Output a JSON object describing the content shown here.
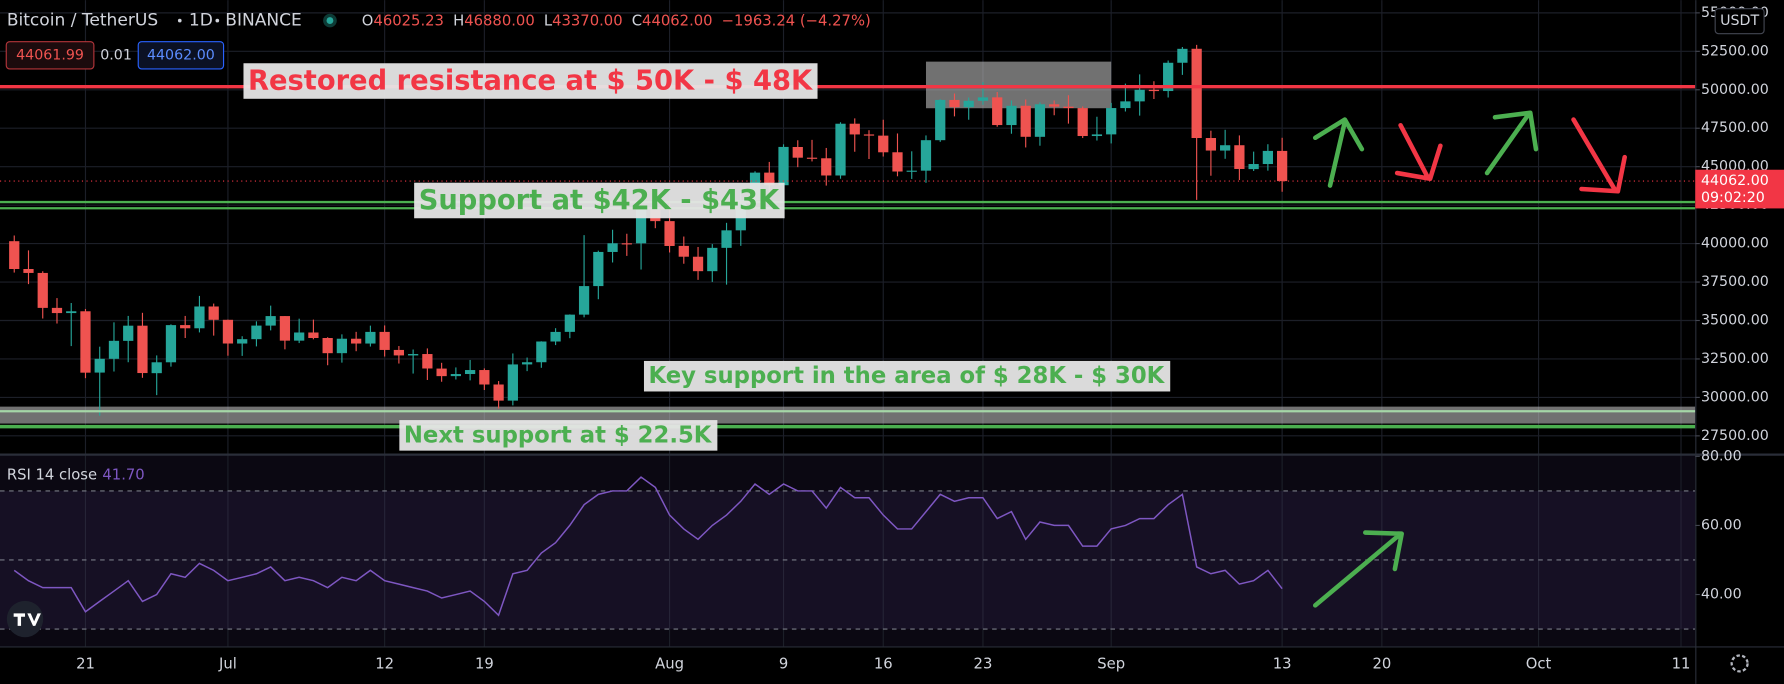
{
  "header": {
    "symbol": "Bitcoin / TetherUS",
    "interval": "1D",
    "exchange": "BINANCE",
    "ohlc": [
      {
        "key": "O",
        "value": "46025.23"
      },
      {
        "key": "H",
        "value": "46880.00"
      },
      {
        "key": "L",
        "value": "43370.00"
      },
      {
        "key": "C",
        "value": "44062.00"
      }
    ],
    "change": "−1963.24 (−4.27%)",
    "bid": "44061.99",
    "spread": "0.01",
    "ask": "44062.00"
  },
  "chart_data": [
    {
      "type": "candlestick",
      "x": [
        "06-16",
        "06-17",
        "06-18",
        "06-19",
        "06-20",
        "06-21",
        "06-22",
        "06-23",
        "06-24",
        "06-25",
        "06-26",
        "06-27",
        "06-28",
        "06-29",
        "06-30",
        "07-01",
        "07-02",
        "07-03",
        "07-04",
        "07-05",
        "07-06",
        "07-07",
        "07-08",
        "07-09",
        "07-10",
        "07-11",
        "07-12",
        "07-13",
        "07-14",
        "07-15",
        "07-16",
        "07-17",
        "07-18",
        "07-19",
        "07-20",
        "07-21",
        "07-22",
        "07-23",
        "07-24",
        "07-25",
        "07-26",
        "07-27",
        "07-28",
        "07-29",
        "07-30",
        "07-31",
        "08-01",
        "08-02",
        "08-03",
        "08-04",
        "08-05",
        "08-06",
        "08-07",
        "08-08",
        "08-09",
        "08-10",
        "08-11",
        "08-12",
        "08-13",
        "08-14",
        "08-15",
        "08-16",
        "08-17",
        "08-18",
        "08-19",
        "08-20",
        "08-21",
        "08-22",
        "08-23",
        "08-24",
        "08-25",
        "08-26",
        "08-27",
        "08-28",
        "08-29",
        "08-30",
        "08-31",
        "09-01",
        "09-02",
        "09-03",
        "09-04",
        "09-05",
        "09-06",
        "09-07",
        "09-08",
        "09-09",
        "09-10",
        "09-11",
        "09-12",
        "09-13"
      ],
      "open": [
        40156,
        38348,
        38092,
        35820,
        35483,
        35600,
        31614,
        32509,
        33676,
        34663,
        31576,
        32283,
        34702,
        34494,
        35911,
        35045,
        33502,
        33786,
        34669,
        35288,
        33690,
        34220,
        33862,
        32876,
        33815,
        33502,
        34259,
        33086,
        32729,
        32820,
        31874,
        31384,
        31521,
        31779,
        30839,
        29790,
        32144,
        32287,
        33634,
        34261,
        35381,
        37237,
        39456,
        40019,
        40018,
        42206,
        41461,
        39850,
        39146,
        38207,
        39723,
        40862,
        42836,
        44614,
        43794,
        46280,
        45585,
        45547,
        44428,
        47793,
        47097,
        47019,
        45937,
        44686,
        44741,
        46723,
        49339,
        48869,
        49284,
        49507,
        47706,
        48960,
        46942,
        49058,
        48903,
        48811,
        46993,
        47100,
        48810,
        49246,
        50000,
        49918,
        51757,
        52666,
        46864,
        46048,
        46395,
        44842,
        45173,
        46025.23
      ],
      "high": [
        40527,
        39559,
        38202,
        36457,
        36137,
        35750,
        33298,
        34881,
        35298,
        35500,
        32730,
        34749,
        35297,
        36600,
        36100,
        35057,
        33977,
        34945,
        35967,
        35293,
        35118,
        35059,
        33912,
        34100,
        34262,
        34666,
        34679,
        33340,
        33114,
        33185,
        32249,
        31949,
        32435,
        31885,
        31063,
        32858,
        32591,
        33650,
        34500,
        35398,
        40550,
        39542,
        40900,
        40640,
        42316,
        42448,
        42599,
        40459,
        39780,
        39969,
        41350,
        43392,
        44700,
        45310,
        46454,
        46718,
        46743,
        46218,
        47886,
        48144,
        47372,
        48053,
        47160,
        46000,
        47033,
        49382,
        49757,
        49500,
        50500,
        49855,
        49300,
        49370,
        49184,
        49300,
        49645,
        48909,
        48246,
        49150,
        50400,
        51000,
        50558,
        51900,
        52780,
        52920,
        47339,
        47399,
        47033,
        45980,
        46460,
        46880
      ],
      "low": [
        38116,
        37365,
        35129,
        34803,
        33336,
        31251,
        28805,
        31683,
        32286,
        31275,
        30151,
        32000,
        33862,
        34225,
        34017,
        32711,
        32699,
        33316,
        34357,
        33125,
        33532,
        33777,
        32091,
        32261,
        33004,
        33306,
        32658,
        32202,
        31550,
        31133,
        31020,
        31164,
        31108,
        30479,
        29278,
        29482,
        31708,
        31925,
        33401,
        33851,
        35205,
        36383,
        38772,
        39200,
        38313,
        41000,
        39422,
        38690,
        37642,
        37508,
        37332,
        39853,
        42446,
        43261,
        42779,
        44970,
        45341,
        43770,
        44217,
        45971,
        45500,
        45660,
        44376,
        44203,
        43955,
        46616,
        48270,
        48050,
        49025,
        47600,
        47142,
        46250,
        46363,
        48346,
        47800,
        46862,
        46700,
        46512,
        48584,
        48316,
        49400,
        49500,
        50969,
        42843,
        44412,
        45513,
        44132,
        44722,
        44742,
        43370
      ],
      "close": [
        38348,
        38092,
        35820,
        35483,
        35600,
        31608,
        32509,
        33678,
        34663,
        31584,
        32283,
        34700,
        34494,
        35911,
        35045,
        33504,
        33786,
        34669,
        35287,
        33690,
        34220,
        33862,
        32875,
        33815,
        33502,
        34259,
        33086,
        32730,
        32820,
        31880,
        31383,
        31520,
        31779,
        30839,
        29790,
        32144,
        32287,
        33634,
        34258,
        35381,
        37237,
        39457,
        40019,
        40016,
        42206,
        41461,
        39845,
        39147,
        38207,
        39723,
        40862,
        42836,
        44614,
        43792,
        46285,
        45585,
        45548,
        44428,
        47793,
        47096,
        47019,
        45936,
        44686,
        44742,
        46723,
        49340,
        48868,
        49285,
        49507,
        47707,
        48960,
        46943,
        49058,
        48903,
        48812,
        46994,
        47100,
        48811,
        49247,
        49999,
        49915,
        51756,
        52663,
        46864,
        46049,
        46395,
        44851,
        45173,
        46026,
        44062
      ],
      "up_color": "#26a69a",
      "down_color": "#ef5350",
      "xlim": [
        "06-15",
        "10-12"
      ],
      "xticks": [
        {
          "value": "06-21",
          "label": "21"
        },
        {
          "value": "07-01",
          "label": "Jul"
        },
        {
          "value": "07-12",
          "label": "12"
        },
        {
          "value": "07-19",
          "label": "19"
        },
        {
          "value": "08-01",
          "label": "Aug"
        },
        {
          "value": "08-09",
          "label": "9"
        },
        {
          "value": "08-16",
          "label": "16"
        },
        {
          "value": "08-23",
          "label": "23"
        },
        {
          "value": "09-01",
          "label": "Sep"
        },
        {
          "value": "09-13",
          "label": "13"
        },
        {
          "value": "09-20",
          "label": "20"
        },
        {
          "value": "10-01",
          "label": "Oct"
        },
        {
          "value": "10-11",
          "label": "11"
        }
      ],
      "ylim": [
        26390,
        55830
      ],
      "yticks": [
        {
          "value": 27500,
          "label": "27500.00"
        },
        {
          "value": 30000,
          "label": "30000.00"
        },
        {
          "value": 32500,
          "label": "32500.00"
        },
        {
          "value": 35000,
          "label": "35000.00"
        },
        {
          "value": 37500,
          "label": "37500.00"
        },
        {
          "value": 40000,
          "label": "40000.00"
        },
        {
          "value": 42500,
          "label": "42500.00"
        },
        {
          "value": 45000,
          "label": "45000.00"
        },
        {
          "value": 47500,
          "label": "47500.00"
        },
        {
          "value": 50000,
          "label": "50000.00"
        },
        {
          "value": 52500,
          "label": "52500.00"
        },
        {
          "value": 55000,
          "label": "55000.00"
        }
      ],
      "grid": true,
      "quote_unit": "USDT",
      "last_price": {
        "value": 44062,
        "label": "44062.00",
        "countdown": "09:02:20",
        "color": "#f23645"
      },
      "zones": [
        {
          "y": [
            48800,
            51830
          ],
          "x": [
            "08-19",
            "09-01"
          ],
          "color": "#bdbdbd"
        },
        {
          "y": [
            28300,
            29400
          ],
          "color": "#bdbdbd"
        }
      ],
      "hlines": [
        {
          "value": 50200,
          "color": "#f23645",
          "width": 3
        },
        {
          "value": 42700,
          "color": "#4caf50",
          "width": 2
        },
        {
          "value": 42300,
          "color": "#4caf50",
          "width": 2
        },
        {
          "value": 29100,
          "color": "#a5d6a7",
          "width": 2
        },
        {
          "value": 28100,
          "color": "#4caf50",
          "width": 3
        }
      ],
      "annotations": [
        {
          "text": "Restored resistance at $ 50K - $ 48K",
          "color": "#f23645"
        },
        {
          "text": "Support at $42K - $43K",
          "color": "#4caf50"
        },
        {
          "text": "Key support in the area of $ 28K - $ 30K",
          "color": "#4caf50"
        },
        {
          "text": "Next support at $ 22.5K",
          "color": "#4caf50"
        }
      ]
    },
    {
      "type": "line",
      "title": "RSI 14 close",
      "last_value": {
        "value": 41.7,
        "label": "41.70"
      },
      "x": [
        "06-16",
        "06-17",
        "06-18",
        "06-19",
        "06-20",
        "06-21",
        "06-22",
        "06-23",
        "06-24",
        "06-25",
        "06-26",
        "06-27",
        "06-28",
        "06-29",
        "06-30",
        "07-01",
        "07-02",
        "07-03",
        "07-04",
        "07-05",
        "07-06",
        "07-07",
        "07-08",
        "07-09",
        "07-10",
        "07-11",
        "07-12",
        "07-13",
        "07-14",
        "07-15",
        "07-16",
        "07-17",
        "07-18",
        "07-19",
        "07-20",
        "07-21",
        "07-22",
        "07-23",
        "07-24",
        "07-25",
        "07-26",
        "07-27",
        "07-28",
        "07-29",
        "07-30",
        "07-31",
        "08-01",
        "08-02",
        "08-03",
        "08-04",
        "08-05",
        "08-06",
        "08-07",
        "08-08",
        "08-09",
        "08-10",
        "08-11",
        "08-12",
        "08-13",
        "08-14",
        "08-15",
        "08-16",
        "08-17",
        "08-18",
        "08-19",
        "08-20",
        "08-21",
        "08-22",
        "08-23",
        "08-24",
        "08-25",
        "08-26",
        "08-27",
        "08-28",
        "08-29",
        "08-30",
        "08-31",
        "09-01",
        "09-02",
        "09-03",
        "09-04",
        "09-05",
        "09-06",
        "09-07",
        "09-08",
        "09-09",
        "09-10",
        "09-11",
        "09-12",
        "09-13"
      ],
      "series": [
        {
          "name": "RSI 14 close",
          "color": "#7e57c2",
          "values": [
            47,
            44,
            42,
            42,
            42,
            35,
            38,
            41,
            44,
            38,
            40,
            46,
            45,
            49,
            47,
            44,
            45,
            46,
            48,
            44,
            45,
            44,
            42,
            45,
            44,
            47,
            44,
            43,
            42,
            41,
            39,
            40,
            41,
            38,
            34,
            46,
            47,
            52,
            55,
            60,
            66,
            69,
            70,
            70,
            74,
            71,
            63,
            59,
            56,
            60,
            63,
            67,
            72,
            69,
            72,
            70,
            70,
            65,
            71,
            68,
            68,
            63,
            59,
            59,
            64,
            69,
            67,
            68,
            68,
            62,
            64,
            56,
            61,
            60,
            60,
            54,
            54,
            59,
            60,
            62,
            62,
            66,
            69,
            48,
            46,
            47,
            43,
            44,
            47,
            41.7
          ]
        }
      ],
      "ylim": [
        25,
        80
      ],
      "yticks": [
        {
          "value": 80,
          "label": "80.00"
        },
        {
          "value": 60,
          "label": "60.00"
        },
        {
          "value": 40,
          "label": "40.00"
        }
      ],
      "levels": [
        70,
        50,
        30
      ],
      "band": [
        70,
        30
      ]
    }
  ]
}
